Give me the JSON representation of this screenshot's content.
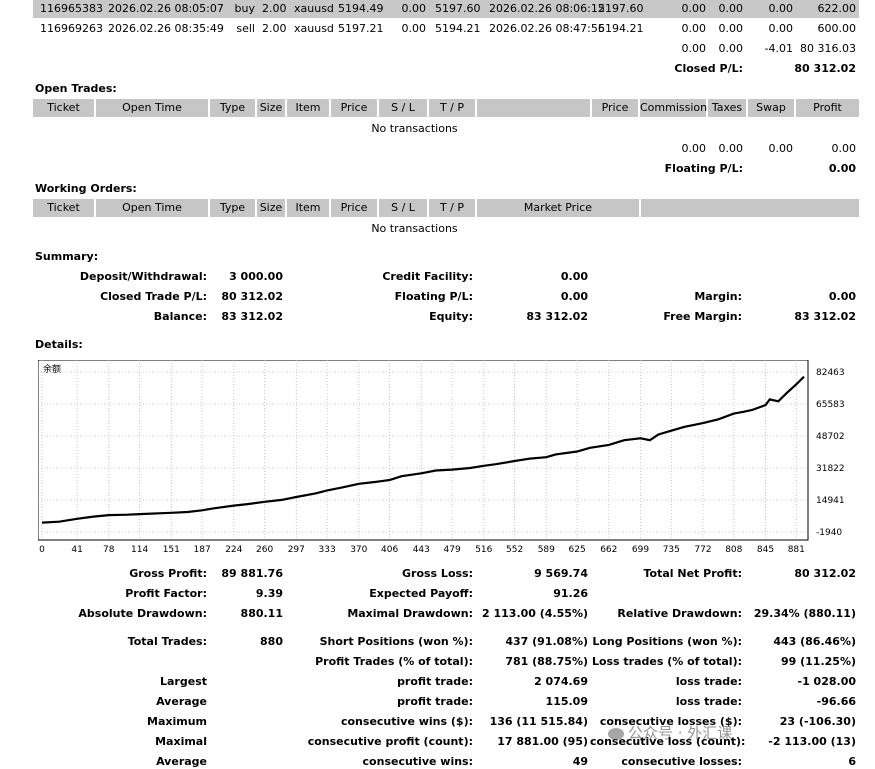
{
  "top_trades": [
    {
      "ticket": "116965383",
      "open_time": "2026.02.26 08:05:07",
      "type": "buy",
      "size": "2.00",
      "item": "xauusd",
      "price": "5194.49",
      "sl": "0.00",
      "tp": "5197.60",
      "close_time": "2026.02.26 08:06:12",
      "close_price": "5197.60",
      "commission": "0.00",
      "taxes": "0.00",
      "swap": "0.00",
      "profit": "622.00"
    },
    {
      "ticket": "116969263",
      "open_time": "2026.02.26 08:35:49",
      "type": "sell",
      "size": "2.00",
      "item": "xauusd",
      "price": "5197.21",
      "sl": "0.00",
      "tp": "5194.21",
      "close_time": "2026.02.26 08:47:56",
      "close_price": "5194.21",
      "commission": "0.00",
      "taxes": "0.00",
      "swap": "0.00",
      "profit": "600.00"
    }
  ],
  "closed_totals": {
    "commission": "0.00",
    "taxes": "0.00",
    "swap": "-4.01",
    "profit": "80 316.03",
    "label": "Closed P/L:",
    "value": "80 312.02"
  },
  "open_trades": {
    "title": "Open Trades:",
    "headers": {
      "ticket": "Ticket",
      "open_time": "Open Time",
      "type": "Type",
      "size": "Size",
      "item": "Item",
      "price": "Price",
      "sl": "S / L",
      "tp": "T / P",
      "price2": "Price",
      "commission": "Commission",
      "taxes": "Taxes",
      "swap": "Swap",
      "profit": "Profit"
    },
    "empty": "No transactions",
    "totals": {
      "commission": "0.00",
      "taxes": "0.00",
      "swap": "0.00",
      "profit": "0.00"
    },
    "floating_label": "Floating P/L:",
    "floating_value": "0.00"
  },
  "working_orders": {
    "title": "Working Orders:",
    "headers": {
      "ticket": "Ticket",
      "open_time": "Open Time",
      "type": "Type",
      "size": "Size",
      "item": "Item",
      "price": "Price",
      "sl": "S / L",
      "tp": "T / P",
      "market_price": "Market Price"
    },
    "empty": "No transactions"
  },
  "summary": {
    "title": "Summary:",
    "deposit_label": "Deposit/Withdrawal:",
    "deposit": "3 000.00",
    "credit_label": "Credit Facility:",
    "credit": "0.00",
    "closed_pl_label": "Closed Trade P/L:",
    "closed_pl": "80 312.02",
    "floating_label": "Floating P/L:",
    "floating": "0.00",
    "margin_label": "Margin:",
    "margin": "0.00",
    "balance_label": "Balance:",
    "balance": "83 312.02",
    "equity_label": "Equity:",
    "equity": "83 312.02",
    "free_margin_label": "Free Margin:",
    "free_margin": "83 312.02"
  },
  "details": {
    "title": "Details:"
  },
  "chart_data": {
    "type": "line",
    "title": "余额",
    "x_ticks": [
      0,
      41,
      78,
      114,
      151,
      187,
      224,
      260,
      297,
      333,
      370,
      406,
      443,
      479,
      516,
      552,
      589,
      625,
      662,
      699,
      735,
      772,
      808,
      845,
      881
    ],
    "y_ticks": [
      82463,
      65583,
      48702,
      31822,
      14941,
      -1940
    ],
    "ylim": [
      -1940,
      82463
    ],
    "xlim": [
      0,
      890
    ],
    "grid": true,
    "series": [
      {
        "x": [
          0,
          20,
          41,
          60,
          78,
          100,
          114,
          140,
          151,
          170,
          187,
          200,
          224,
          240,
          260,
          280,
          297,
          320,
          333,
          350,
          370,
          390,
          406,
          420,
          443,
          460,
          479,
          500,
          516,
          530,
          552,
          570,
          589,
          600,
          625,
          640,
          662,
          680,
          699,
          710,
          720,
          735,
          750,
          772,
          790,
          808,
          820,
          830,
          845,
          850,
          860,
          870,
          881,
          890
        ],
        "y": [
          3000,
          3500,
          5000,
          6200,
          7000,
          7200,
          7500,
          8000,
          8200,
          8600,
          9500,
          10500,
          12000,
          12800,
          14000,
          15000,
          16500,
          18500,
          20000,
          21500,
          23500,
          24500,
          25500,
          27500,
          29000,
          30500,
          31000,
          31800,
          33000,
          33800,
          35500,
          36800,
          37500,
          39000,
          40500,
          42500,
          44000,
          46500,
          47500,
          46500,
          49500,
          51500,
          53500,
          55500,
          57500,
          60500,
          61500,
          62500,
          65000,
          68000,
          67000,
          71500,
          76000,
          80000
        ]
      }
    ]
  },
  "stats": {
    "gross_profit_label": "Gross Profit:",
    "gross_profit": "89 881.76",
    "gross_loss_label": "Gross Loss:",
    "gross_loss": "9 569.74",
    "total_net_label": "Total Net Profit:",
    "total_net": "80 312.02",
    "profit_factor_label": "Profit Factor:",
    "profit_factor": "9.39",
    "expected_payoff_label": "Expected Payoff:",
    "expected_payoff": "91.26",
    "abs_dd_label": "Absolute Drawdown:",
    "abs_dd": "880.11",
    "max_dd_label": "Maximal Drawdown:",
    "max_dd": "2 113.00 (4.55%)",
    "rel_dd_label": "Relative Drawdown:",
    "rel_dd": "29.34% (880.11)",
    "total_trades_label": "Total Trades:",
    "total_trades": "880",
    "short_label": "Short Positions (won %):",
    "short": "437 (91.08%)",
    "long_label": "Long Positions (won %):",
    "long": "443 (86.46%)",
    "profit_trades_label": "Profit Trades (% of total):",
    "profit_trades": "781 (88.75%)",
    "loss_trades_label": "Loss trades (% of total):",
    "loss_trades": "99 (11.25%)",
    "largest_label": "Largest",
    "largest_profit_label": "profit trade:",
    "largest_profit": "2 074.69",
    "largest_loss_label": "loss trade:",
    "largest_loss": "-1 028.00",
    "average_label": "Average",
    "avg_profit_label": "profit trade:",
    "avg_profit": "115.09",
    "avg_loss_label": "loss trade:",
    "avg_loss": "-96.66",
    "maximum_label": "Maximum",
    "max_cons_wins_label": "consecutive wins ($):",
    "max_cons_wins": "136 (11 515.84)",
    "max_cons_losses_label": "consecutive losses ($):",
    "max_cons_losses": "23 (-106.30)",
    "maximal_label": "Maximal",
    "maximal_profit_label": "consecutive profit (count):",
    "maximal_profit": "17 881.00 (95)",
    "maximal_loss_label": "consecutive loss (count):",
    "maximal_loss": "-2 113.00 (13)",
    "average2_label": "Average",
    "avg_cons_wins_label": "consecutive wins:",
    "avg_cons_wins": "49",
    "avg_cons_losses_label": "consecutive losses:",
    "avg_cons_losses": "6"
  },
  "watermark": "公众号 · 外汇课"
}
